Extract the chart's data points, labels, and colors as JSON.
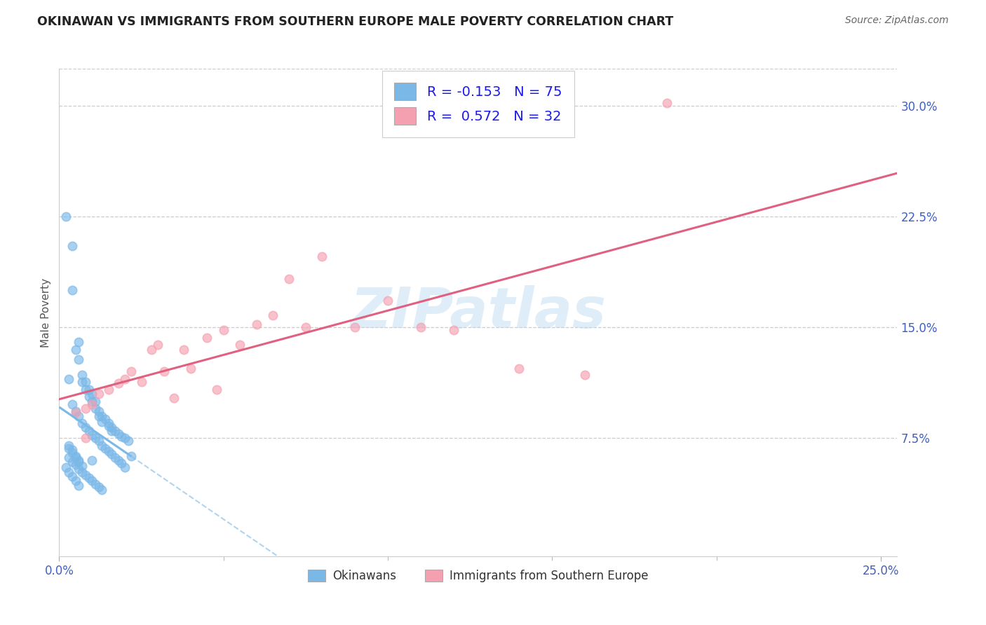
{
  "title": "OKINAWAN VS IMMIGRANTS FROM SOUTHERN EUROPE MALE POVERTY CORRELATION CHART",
  "source_text": "Source: ZipAtlas.com",
  "ylabel": "Male Poverty",
  "xlim": [
    0.0,
    0.255
  ],
  "ylim": [
    -0.005,
    0.325
  ],
  "xtick_vals": [
    0.0,
    0.25
  ],
  "xtick_labels": [
    "0.0%",
    "25.0%"
  ],
  "xtick_minor_vals": [
    0.05,
    0.1,
    0.15,
    0.2
  ],
  "ytick_vals": [
    0.075,
    0.15,
    0.225,
    0.3
  ],
  "ytick_labels": [
    "7.5%",
    "15.0%",
    "22.5%",
    "30.0%"
  ],
  "series1_name": "Okinawans",
  "series1_color": "#7ab8e8",
  "series1_R": -0.153,
  "series1_N": 75,
  "series2_name": "Immigrants from Southern Europe",
  "series2_color": "#f5a0b0",
  "series2_trendline_color": "#e06080",
  "series2_R": 0.572,
  "series2_N": 32,
  "watermark": "ZIPatlas",
  "background_color": "#ffffff",
  "tick_color": "#4060c0",
  "okinawan_x": [
    0.002,
    0.004,
    0.004,
    0.005,
    0.006,
    0.006,
    0.007,
    0.007,
    0.008,
    0.008,
    0.009,
    0.009,
    0.01,
    0.01,
    0.011,
    0.011,
    0.012,
    0.012,
    0.013,
    0.013,
    0.014,
    0.015,
    0.015,
    0.016,
    0.016,
    0.017,
    0.018,
    0.019,
    0.02,
    0.021,
    0.003,
    0.004,
    0.005,
    0.006,
    0.007,
    0.008,
    0.009,
    0.01,
    0.011,
    0.012,
    0.013,
    0.014,
    0.015,
    0.016,
    0.017,
    0.018,
    0.019,
    0.02,
    0.003,
    0.004,
    0.005,
    0.006,
    0.007,
    0.008,
    0.009,
    0.01,
    0.011,
    0.012,
    0.013,
    0.003,
    0.004,
    0.005,
    0.006,
    0.007,
    0.003,
    0.004,
    0.005,
    0.006,
    0.002,
    0.003,
    0.004,
    0.005,
    0.006,
    0.01,
    0.022
  ],
  "okinawan_y": [
    0.225,
    0.205,
    0.175,
    0.135,
    0.14,
    0.128,
    0.118,
    0.113,
    0.113,
    0.108,
    0.108,
    0.103,
    0.105,
    0.1,
    0.1,
    0.095,
    0.093,
    0.09,
    0.09,
    0.086,
    0.088,
    0.085,
    0.083,
    0.082,
    0.08,
    0.08,
    0.078,
    0.076,
    0.075,
    0.073,
    0.115,
    0.098,
    0.093,
    0.09,
    0.085,
    0.082,
    0.08,
    0.077,
    0.075,
    0.073,
    0.07,
    0.068,
    0.066,
    0.064,
    0.062,
    0.06,
    0.058,
    0.055,
    0.062,
    0.059,
    0.057,
    0.054,
    0.052,
    0.05,
    0.048,
    0.046,
    0.044,
    0.042,
    0.04,
    0.068,
    0.065,
    0.062,
    0.059,
    0.056,
    0.07,
    0.067,
    0.063,
    0.06,
    0.055,
    0.052,
    0.049,
    0.046,
    0.043,
    0.06,
    0.063
  ],
  "southern_europe_x": [
    0.005,
    0.008,
    0.01,
    0.012,
    0.015,
    0.018,
    0.02,
    0.022,
    0.025,
    0.028,
    0.03,
    0.032,
    0.035,
    0.038,
    0.04,
    0.045,
    0.048,
    0.05,
    0.055,
    0.06,
    0.065,
    0.07,
    0.075,
    0.08,
    0.09,
    0.1,
    0.11,
    0.12,
    0.14,
    0.16,
    0.185,
    0.008
  ],
  "southern_europe_y": [
    0.092,
    0.095,
    0.098,
    0.105,
    0.108,
    0.112,
    0.115,
    0.12,
    0.113,
    0.135,
    0.138,
    0.12,
    0.102,
    0.135,
    0.122,
    0.143,
    0.108,
    0.148,
    0.138,
    0.152,
    0.158,
    0.183,
    0.15,
    0.198,
    0.15,
    0.168,
    0.15,
    0.148,
    0.122,
    0.118,
    0.302,
    0.075
  ]
}
